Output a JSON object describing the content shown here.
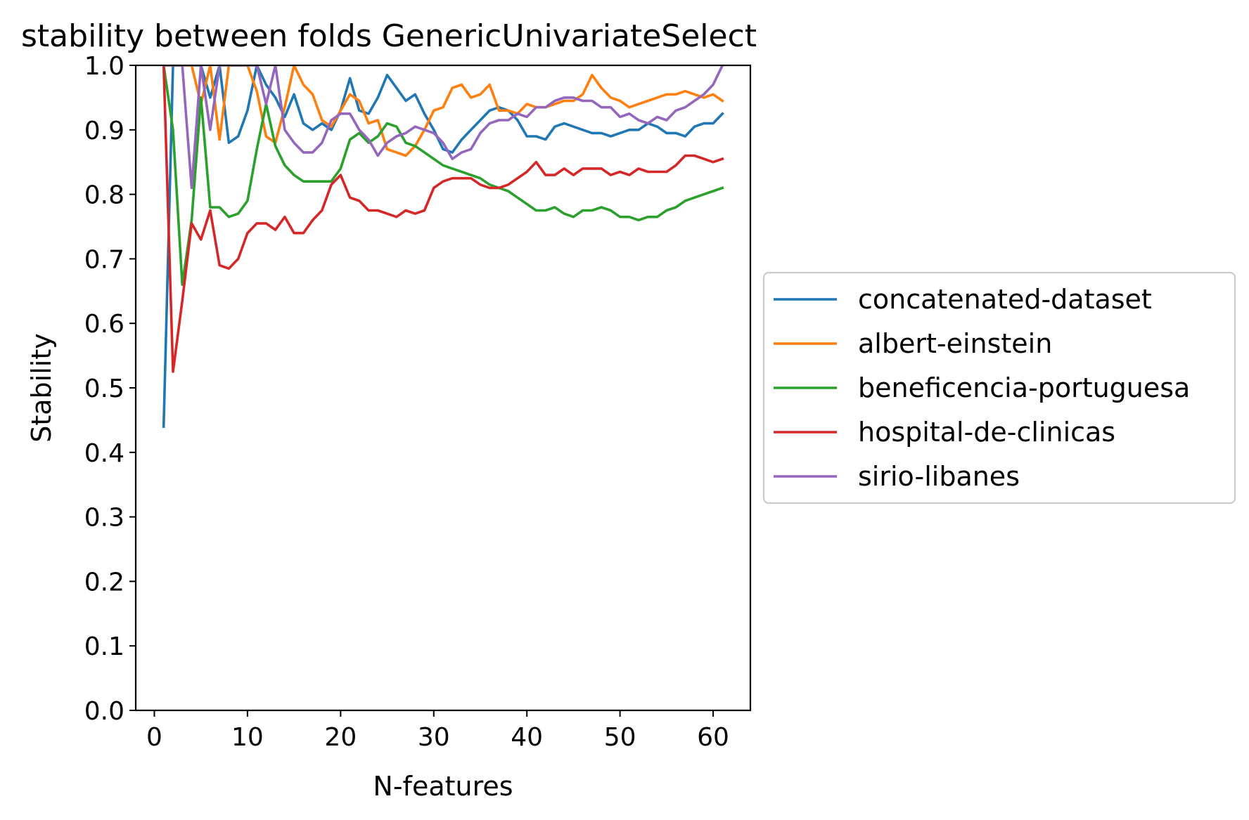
{
  "chart_data": {
    "type": "line",
    "title": "stability between folds GenericUnivariateSelect",
    "xlabel": "N-features",
    "ylabel": "Stability",
    "xlim": [
      -2,
      64
    ],
    "ylim": [
      0.0,
      1.0
    ],
    "xticks": [
      0,
      10,
      20,
      30,
      40,
      50,
      60
    ],
    "yticks": [
      0.0,
      0.1,
      0.2,
      0.3,
      0.4,
      0.5,
      0.6,
      0.7,
      0.8,
      0.9,
      1.0
    ],
    "xtick_labels": [
      "0",
      "10",
      "20",
      "30",
      "40",
      "50",
      "60"
    ],
    "ytick_labels": [
      "0.0",
      "0.1",
      "0.2",
      "0.3",
      "0.4",
      "0.5",
      "0.6",
      "0.7",
      "0.8",
      "0.9",
      "1.0"
    ],
    "grid": false,
    "legend_position": "center-right-outside",
    "x_start": 1,
    "series": [
      {
        "name": "concatenated-dataset",
        "color": "#1f77b4",
        "values": [
          0.44,
          1.0,
          1.0,
          1.0,
          1.0,
          0.95,
          1.0,
          0.88,
          0.89,
          0.93,
          1.0,
          0.97,
          0.95,
          0.92,
          0.955,
          0.91,
          0.9,
          0.91,
          0.9,
          0.93,
          0.98,
          0.93,
          0.925,
          0.95,
          0.985,
          0.965,
          0.945,
          0.955,
          0.925,
          0.9,
          0.87,
          0.865,
          0.885,
          0.9,
          0.915,
          0.93,
          0.935,
          0.93,
          0.915,
          0.89,
          0.89,
          0.885,
          0.905,
          0.91,
          0.905,
          0.9,
          0.895,
          0.895,
          0.89,
          0.895,
          0.9,
          0.9,
          0.91,
          0.905,
          0.895,
          0.895,
          0.89,
          0.905,
          0.91,
          0.91,
          0.925
        ]
      },
      {
        "name": "albert-einstein",
        "color": "#ff7f0e",
        "values": [
          1.0,
          1.0,
          1.0,
          1.0,
          0.94,
          1.0,
          0.885,
          1.0,
          1.0,
          1.0,
          0.96,
          0.89,
          0.88,
          0.935,
          1.0,
          0.97,
          0.955,
          0.915,
          0.905,
          0.93,
          0.955,
          0.945,
          0.91,
          0.915,
          0.87,
          0.865,
          0.86,
          0.875,
          0.9,
          0.93,
          0.935,
          0.965,
          0.97,
          0.95,
          0.955,
          0.97,
          0.93,
          0.93,
          0.925,
          0.94,
          0.935,
          0.935,
          0.94,
          0.945,
          0.945,
          0.955,
          0.985,
          0.965,
          0.95,
          0.945,
          0.935,
          0.94,
          0.945,
          0.95,
          0.955,
          0.955,
          0.96,
          0.955,
          0.95,
          0.955,
          0.945
        ]
      },
      {
        "name": "beneficencia-portuguesa",
        "color": "#2ca02c",
        "values": [
          1.0,
          0.9,
          0.66,
          0.76,
          0.95,
          0.78,
          0.78,
          0.765,
          0.77,
          0.79,
          0.87,
          0.94,
          0.875,
          0.845,
          0.83,
          0.82,
          0.82,
          0.82,
          0.82,
          0.84,
          0.885,
          0.895,
          0.88,
          0.89,
          0.91,
          0.905,
          0.88,
          0.875,
          0.865,
          0.855,
          0.845,
          0.84,
          0.835,
          0.83,
          0.825,
          0.815,
          0.81,
          0.805,
          0.795,
          0.785,
          0.775,
          0.775,
          0.78,
          0.77,
          0.765,
          0.775,
          0.775,
          0.78,
          0.775,
          0.765,
          0.765,
          0.76,
          0.765,
          0.765,
          0.775,
          0.78,
          0.79,
          0.795,
          0.8,
          0.805,
          0.81
        ]
      },
      {
        "name": "hospital-de-clinicas",
        "color": "#d62728",
        "values": [
          1.0,
          0.525,
          0.635,
          0.755,
          0.73,
          0.775,
          0.69,
          0.685,
          0.7,
          0.74,
          0.755,
          0.755,
          0.745,
          0.765,
          0.74,
          0.74,
          0.76,
          0.775,
          0.815,
          0.83,
          0.795,
          0.79,
          0.775,
          0.775,
          0.77,
          0.765,
          0.775,
          0.77,
          0.775,
          0.81,
          0.82,
          0.825,
          0.825,
          0.825,
          0.815,
          0.81,
          0.81,
          0.815,
          0.825,
          0.835,
          0.85,
          0.83,
          0.83,
          0.84,
          0.83,
          0.84,
          0.84,
          0.84,
          0.83,
          0.835,
          0.83,
          0.84,
          0.835,
          0.835,
          0.835,
          0.845,
          0.86,
          0.86,
          0.855,
          0.85,
          0.855
        ]
      },
      {
        "name": "sirio-libanes",
        "color": "#9467bd",
        "values": [
          1.0,
          1.0,
          1.0,
          0.81,
          1.0,
          0.9,
          1.0,
          1.0,
          1.0,
          1.0,
          1.0,
          0.94,
          1.0,
          0.9,
          0.88,
          0.865,
          0.865,
          0.88,
          0.915,
          0.925,
          0.925,
          0.9,
          0.885,
          0.86,
          0.88,
          0.89,
          0.895,
          0.905,
          0.9,
          0.895,
          0.88,
          0.855,
          0.865,
          0.87,
          0.895,
          0.91,
          0.915,
          0.915,
          0.925,
          0.92,
          0.935,
          0.935,
          0.945,
          0.95,
          0.95,
          0.945,
          0.945,
          0.935,
          0.935,
          0.92,
          0.925,
          0.915,
          0.91,
          0.92,
          0.915,
          0.93,
          0.935,
          0.945,
          0.955,
          0.97,
          1.0
        ]
      }
    ]
  }
}
